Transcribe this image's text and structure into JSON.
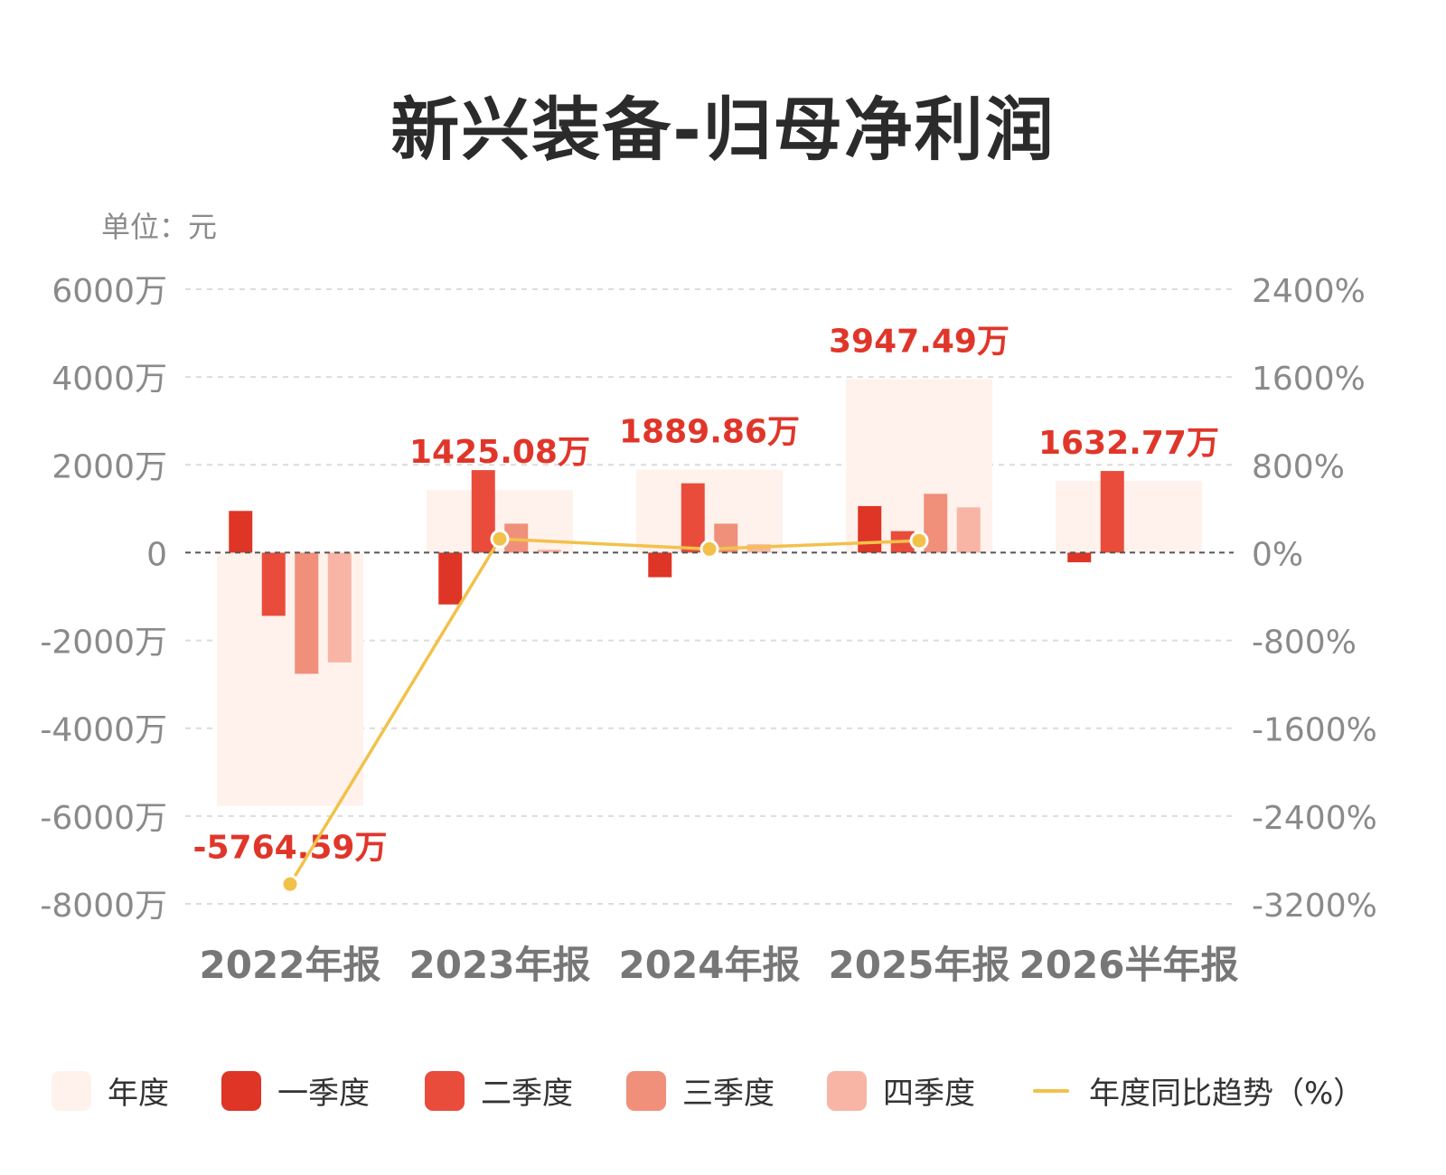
{
  "title": "新兴装备-归母净利润",
  "unit": "单位：元",
  "colors": {
    "annual": "#fff1ec",
    "q1": "#de3526",
    "q2": "#ea4c3c",
    "q3": "#f0907a",
    "q4": "#f8b5a5",
    "yoy": "#f2c14a",
    "annual_label": "#e0362a",
    "axis_text": "#8a8a8a",
    "grid": "#dcdcdc",
    "zero_line": "#555555"
  },
  "legend": [
    {
      "key": "annual",
      "label": "年度",
      "kind": "swatch"
    },
    {
      "key": "q1",
      "label": "一季度",
      "kind": "swatch"
    },
    {
      "key": "q2",
      "label": "二季度",
      "kind": "swatch"
    },
    {
      "key": "q3",
      "label": "三季度",
      "kind": "swatch"
    },
    {
      "key": "q4",
      "label": "四季度",
      "kind": "swatch"
    },
    {
      "key": "yoy",
      "label": "年度同比趋势（%）",
      "kind": "line"
    }
  ],
  "chart_data": {
    "type": "bar",
    "grid": true,
    "legend_position": "bottom",
    "categories": [
      "2022年报",
      "2023年报",
      "2024年报",
      "2025年报",
      "2026半年报"
    ],
    "left_axis": {
      "ticks": [
        6000,
        4000,
        2000,
        0,
        -2000,
        -4000,
        -6000,
        -8000
      ],
      "tick_labels": [
        "6000万",
        "4000万",
        "2000万",
        "0",
        "-2000万",
        "-4000万",
        "-6000万",
        "-8000万"
      ],
      "ylim": [
        -8000,
        6000
      ]
    },
    "right_axis": {
      "ticks": [
        2400,
        1600,
        800,
        0,
        -800,
        -1600,
        -2400,
        -3200
      ],
      "tick_labels": [
        "2400%",
        "1600%",
        "800%",
        "0%",
        "-800%",
        "-1600%",
        "-2400%",
        "-3200%"
      ],
      "ylim": [
        -3200,
        2400
      ]
    },
    "annual": [
      -5764.59,
      1425.08,
      1889.86,
      3947.49,
      1632.77
    ],
    "annual_labels": [
      "-5764.59万",
      "1425.08万",
      "1889.86万",
      "3947.49万",
      "1632.77万"
    ],
    "series": [
      {
        "name": "一季度",
        "key": "q1",
        "values": [
          950,
          -1180,
          -560,
          1060,
          -220
        ]
      },
      {
        "name": "二季度",
        "key": "q2",
        "values": [
          -1440,
          1880,
          1580,
          490,
          1860
        ]
      },
      {
        "name": "三季度",
        "key": "q3",
        "values": [
          -2760,
          660,
          660,
          1340,
          null
        ]
      },
      {
        "name": "四季度",
        "key": "q4",
        "values": [
          -2500,
          70,
          190,
          1030,
          null
        ]
      }
    ],
    "yoy_trend": {
      "name": "年度同比趋势（%）",
      "values": [
        -3020,
        125,
        33,
        109,
        null
      ]
    }
  }
}
